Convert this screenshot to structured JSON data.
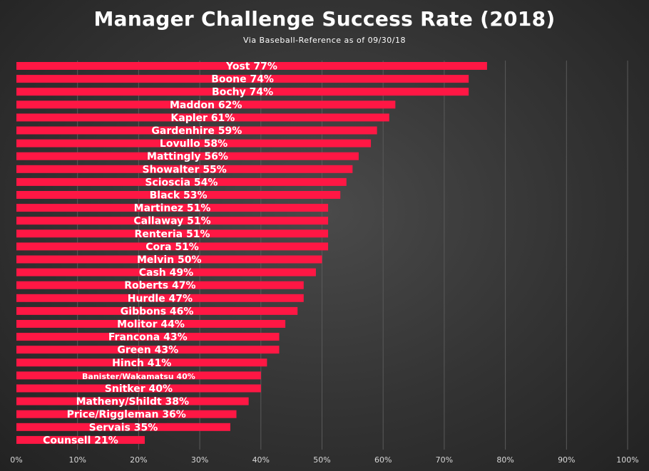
{
  "chart_data": {
    "type": "bar",
    "orientation": "horizontal",
    "title": "Manager Challenge Success Rate (2018)",
    "subtitle": "Via Baseball-Reference  as of 09/30/18",
    "bar_color": "#ff1744",
    "categories": [
      "Yost",
      "Boone",
      "Bochy",
      "Maddon",
      "Kapler",
      "Gardenhire",
      "Lovullo",
      "Mattingly",
      "Showalter",
      "Scioscia",
      "Black",
      "Martinez",
      "Callaway",
      "Renteria",
      "Cora",
      "Melvin",
      "Cash",
      "Roberts",
      "Hurdle",
      "Gibbons",
      "Molitor",
      "Francona",
      "Green",
      "Hinch",
      "Banister/Wakamatsu",
      "Snitker",
      "Matheny/Shildt",
      "Price/Riggleman",
      "Servais",
      "Counsell"
    ],
    "values": [
      77,
      74,
      74,
      62,
      61,
      59,
      58,
      56,
      55,
      54,
      53,
      51,
      51,
      51,
      51,
      50,
      49,
      47,
      47,
      46,
      44,
      43,
      43,
      41,
      40,
      40,
      38,
      36,
      35,
      21
    ],
    "labels": [
      "Yost 77%",
      "Boone 74%",
      "Bochy 74%",
      "Maddon 62%",
      "Kapler 61%",
      "Gardenhire 59%",
      "Lovullo 58%",
      "Mattingly 56%",
      "Showalter 55%",
      "Scioscia 54%",
      "Black 53%",
      "Martinez 51%",
      "Callaway 51%",
      "Renteria 51%",
      "Cora 51%",
      "Melvin 50%",
      "Cash 49%",
      "Roberts 47%",
      "Hurdle 47%",
      "Gibbons 46%",
      "Molitor 44%",
      "Francona 43%",
      "Green 43%",
      "Hinch 41%",
      "Banister/Wakamatsu 40%",
      "Snitker 40%",
      "Matheny/Shildt 38%",
      "Price/Riggleman 36%",
      "Servais 35%",
      "Counsell 21%"
    ],
    "x_ticks": [
      "0%",
      "10%",
      "20%",
      "30%",
      "40%",
      "50%",
      "60%",
      "70%",
      "80%",
      "90%",
      "100%"
    ],
    "xlim": [
      0,
      100
    ],
    "grid": true,
    "legend": "none"
  }
}
